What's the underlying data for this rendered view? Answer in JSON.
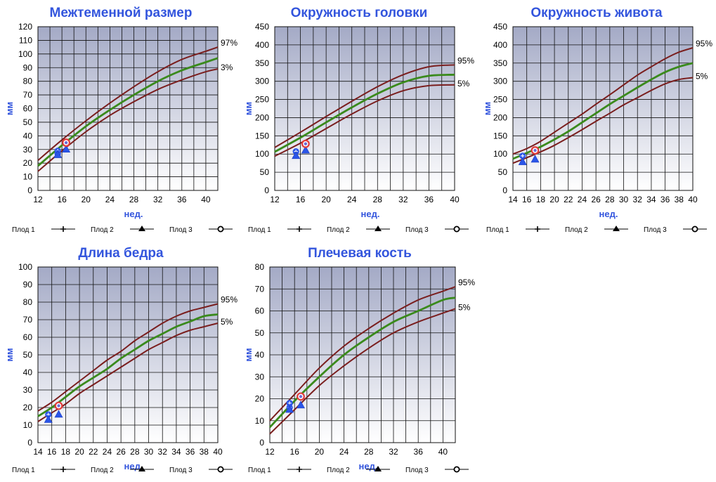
{
  "legend": [
    {
      "label": "Плод 1",
      "marker": "plus-marker-icon"
    },
    {
      "label": "Плод 2",
      "marker": "triangle-marker-icon"
    },
    {
      "label": "Плод 3",
      "marker": "circle-marker-icon"
    }
  ],
  "colors": {
    "title": "#3355dd",
    "percentile_lines": "#7a1e1e",
    "median_line": "#3a8a1c",
    "marker_blue": "#2a55e8",
    "marker_red": "#e03a3a",
    "plot_bg_top": "#a4aac6",
    "plot_bg_bottom": "#ffffff"
  },
  "chart_data": [
    {
      "type": "line",
      "title": "Межтеменной размер",
      "xlabel": "нед.",
      "ylabel": "мм",
      "xlim": [
        12,
        42
      ],
      "ylim": [
        0,
        120
      ],
      "xticks": [
        "12",
        "16",
        "20",
        "24",
        "28",
        "32",
        "36",
        "40"
      ],
      "yticks": [
        "0",
        "10",
        "20",
        "30",
        "40",
        "50",
        "60",
        "70",
        "80",
        "90",
        "100",
        "110",
        "120"
      ],
      "grid": true,
      "x": [
        12,
        16,
        20,
        24,
        28,
        32,
        36,
        40,
        42
      ],
      "series": [
        {
          "name": "97%",
          "role": "upper",
          "values": [
            22,
            37,
            51,
            64,
            76,
            87,
            96,
            102,
            105
          ]
        },
        {
          "name": "",
          "role": "median",
          "values": [
            18,
            33,
            47,
            59,
            70,
            80,
            88,
            94,
            97
          ]
        },
        {
          "name": "3%",
          "role": "lower",
          "values": [
            14,
            29,
            43,
            55,
            65,
            74,
            81,
            87,
            89
          ]
        }
      ],
      "points": [
        {
          "fetus": "Плод 1",
          "x": 15.3,
          "y": 29
        },
        {
          "fetus": "Плод 1",
          "x": 15.3,
          "y": 27
        },
        {
          "fetus": "Плод 2",
          "x": 15.3,
          "y": 26
        },
        {
          "fetus": "Плод 2",
          "x": 16.7,
          "y": 30
        },
        {
          "fetus": "Плод 3",
          "x": 16.7,
          "y": 35
        }
      ]
    },
    {
      "type": "line",
      "title": "Окружность головки",
      "xlabel": "нед.",
      "ylabel": "мм",
      "xlim": [
        12,
        40
      ],
      "ylim": [
        0,
        450
      ],
      "xticks": [
        "12",
        "16",
        "20",
        "24",
        "28",
        "32",
        "36",
        "40"
      ],
      "yticks": [
        "0",
        "50",
        "100",
        "150",
        "200",
        "250",
        "300",
        "350",
        "400",
        "450"
      ],
      "grid": true,
      "x": [
        12,
        16,
        20,
        24,
        28,
        32,
        36,
        40
      ],
      "series": [
        {
          "name": "95%",
          "role": "upper",
          "values": [
            118,
            160,
            203,
            245,
            285,
            318,
            340,
            345
          ]
        },
        {
          "name": "",
          "role": "median",
          "values": [
            106,
            145,
            187,
            228,
            266,
            297,
            315,
            318
          ]
        },
        {
          "name": "5%",
          "role": "lower",
          "values": [
            94,
            130,
            170,
            210,
            246,
            274,
            288,
            290
          ]
        }
      ],
      "points": [
        {
          "fetus": "Плод 1",
          "x": 15.3,
          "y": 107
        },
        {
          "fetus": "Плод 2",
          "x": 15.3,
          "y": 95
        },
        {
          "fetus": "Плод 2",
          "x": 16.8,
          "y": 110
        },
        {
          "fetus": "Плод 3",
          "x": 16.8,
          "y": 128
        }
      ]
    },
    {
      "type": "line",
      "title": "Окружность живота",
      "xlabel": "нед.",
      "ylabel": "мм",
      "xlim": [
        14,
        40
      ],
      "ylim": [
        0,
        450
      ],
      "xticks": [
        "14",
        "16",
        "18",
        "20",
        "22",
        "24",
        "26",
        "28",
        "30",
        "32",
        "34",
        "36",
        "38",
        "40"
      ],
      "yticks": [
        "0",
        "50",
        "100",
        "150",
        "200",
        "250",
        "300",
        "350",
        "400",
        "450"
      ],
      "grid": true,
      "x": [
        14,
        16,
        18,
        20,
        22,
        24,
        26,
        28,
        30,
        32,
        34,
        36,
        38,
        40
      ],
      "series": [
        {
          "name": "95%",
          "role": "upper",
          "values": [
            100,
            115,
            135,
            160,
            185,
            210,
            237,
            263,
            290,
            317,
            340,
            362,
            380,
            392
          ]
        },
        {
          "name": "",
          "role": "median",
          "values": [
            87,
            103,
            120,
            140,
            162,
            187,
            212,
            237,
            260,
            283,
            305,
            325,
            340,
            350
          ]
        },
        {
          "name": "5%",
          "role": "lower",
          "values": [
            75,
            90,
            106,
            124,
            145,
            167,
            190,
            212,
            235,
            255,
            275,
            293,
            305,
            310
          ]
        }
      ],
      "points": [
        {
          "fetus": "Плод 1",
          "x": 15.4,
          "y": 95
        },
        {
          "fetus": "Плод 2",
          "x": 15.4,
          "y": 78
        },
        {
          "fetus": "Плод 2",
          "x": 17.2,
          "y": 85
        },
        {
          "fetus": "Плод 3",
          "x": 17.2,
          "y": 110
        }
      ]
    },
    {
      "type": "line",
      "title": "Длина бедра",
      "xlabel": "нед.",
      "ylabel": "мм",
      "xlim": [
        14,
        40
      ],
      "ylim": [
        0,
        100
      ],
      "xticks": [
        "14",
        "16",
        "18",
        "20",
        "22",
        "24",
        "26",
        "28",
        "30",
        "32",
        "34",
        "36",
        "38",
        "40"
      ],
      "yticks": [
        "0",
        "10",
        "20",
        "30",
        "40",
        "50",
        "60",
        "70",
        "80",
        "90",
        "100"
      ],
      "grid": true,
      "x": [
        14,
        16,
        18,
        20,
        22,
        24,
        26,
        28,
        30,
        32,
        34,
        36,
        38,
        40
      ],
      "series": [
        {
          "name": "95%",
          "role": "upper",
          "values": [
            18,
            23,
            29,
            35,
            41,
            47,
            52,
            58,
            63,
            68,
            72,
            75,
            77,
            79
          ]
        },
        {
          "name": "",
          "role": "median",
          "values": [
            15,
            20,
            26,
            32,
            37,
            42,
            48,
            53,
            58,
            62,
            66,
            69,
            72,
            73
          ]
        },
        {
          "name": "5%",
          "role": "lower",
          "values": [
            12,
            17,
            22,
            28,
            33,
            38,
            43,
            48,
            53,
            57,
            61,
            64,
            66,
            68
          ]
        }
      ],
      "points": [
        {
          "fetus": "Плод 1",
          "x": 15.5,
          "y": 16
        },
        {
          "fetus": "Плод 2",
          "x": 15.5,
          "y": 13
        },
        {
          "fetus": "Плод 2",
          "x": 17.0,
          "y": 16
        },
        {
          "fetus": "Плод 3",
          "x": 17.0,
          "y": 21
        }
      ]
    },
    {
      "type": "line",
      "title": "Плечевая кость",
      "xlabel": "нед.",
      "ylabel": "мм",
      "xlim": [
        12,
        42
      ],
      "ylim": [
        0,
        80
      ],
      "xticks": [
        "12",
        "16",
        "20",
        "24",
        "28",
        "32",
        "36",
        "40"
      ],
      "yticks": [
        "0",
        "10",
        "20",
        "30",
        "40",
        "50",
        "60",
        "70",
        "80"
      ],
      "grid": true,
      "x": [
        12,
        16,
        20,
        24,
        28,
        32,
        36,
        40,
        42
      ],
      "series": [
        {
          "name": "95%",
          "role": "upper",
          "values": [
            10,
            22,
            34,
            44,
            52,
            59,
            65,
            69,
            71
          ]
        },
        {
          "name": "",
          "role": "median",
          "values": [
            7,
            19,
            30,
            40,
            48,
            55,
            60,
            65,
            66
          ]
        },
        {
          "name": "5%",
          "role": "lower",
          "values": [
            4,
            15,
            26,
            35,
            43,
            50,
            55,
            59,
            61
          ]
        }
      ],
      "points": [
        {
          "fetus": "Плод 1",
          "x": 15.2,
          "y": 18
        },
        {
          "fetus": "Плод 1",
          "x": 15.2,
          "y": 16
        },
        {
          "fetus": "Плод 2",
          "x": 15.2,
          "y": 15
        },
        {
          "fetus": "Плод 2",
          "x": 17.0,
          "y": 17
        },
        {
          "fetus": "Плод 3",
          "x": 17.0,
          "y": 21
        }
      ]
    }
  ]
}
